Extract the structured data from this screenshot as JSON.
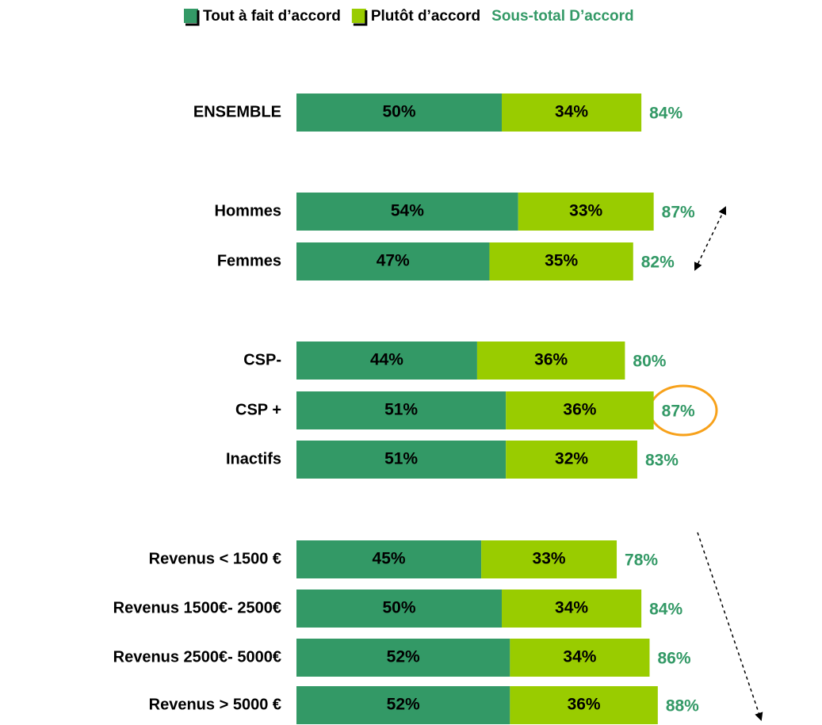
{
  "chart_data": {
    "type": "stacked-bar-horizontal",
    "categories": [
      "ENSEMBLE",
      "Hommes",
      "Femmes",
      "CSP-",
      "CSP +",
      "Inactifs",
      "Revenus < 1500 €",
      "Revenus 1500€- 2500€",
      "Revenus 2500€- 5000€",
      "Revenus > 5000 €"
    ],
    "series": [
      {
        "name": "Tout à fait d’accord",
        "color": "#339966",
        "values": [
          50,
          54,
          47,
          44,
          51,
          51,
          45,
          50,
          52,
          52
        ],
        "value_labels": [
          "50%",
          "54%",
          "47%",
          "44%",
          "51%",
          "51%",
          "45%",
          "50%",
          "52%",
          "52%"
        ]
      },
      {
        "name": "Plutôt d’accord",
        "color": "#99cc00",
        "values": [
          34,
          33,
          35,
          36,
          36,
          32,
          33,
          34,
          34,
          36
        ],
        "value_labels": [
          "34%",
          "33%",
          "35%",
          "36%",
          "36%",
          "32%",
          "33%",
          "34%",
          "34%",
          "36%"
        ]
      }
    ],
    "subtotal": {
      "name": "Sous-total D’accord",
      "color": "#339966",
      "values": [
        84,
        87,
        82,
        80,
        87,
        83,
        78,
        84,
        86,
        88
      ],
      "value_labels": [
        "84%",
        "87%",
        "82%",
        "80%",
        "87%",
        "83%",
        "78%",
        "84%",
        "86%",
        "88%"
      ]
    }
  }
}
